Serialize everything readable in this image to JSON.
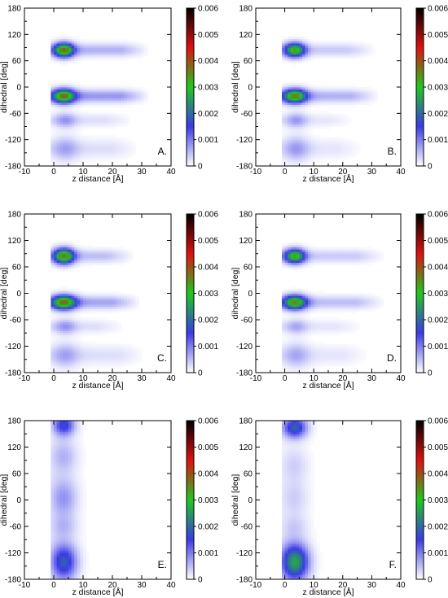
{
  "colorbar": {
    "min": 0,
    "max": 0.006,
    "ticks": [
      "0.006",
      "0.005",
      "0.004",
      "0.003",
      "0.002",
      "0.001",
      "0"
    ],
    "colors": [
      "#ffffff",
      "#3a3ae6",
      "#1fc81f",
      "#e01010",
      "#000000"
    ]
  },
  "chart_data": [
    {
      "type": "heatmap",
      "panel": "A.",
      "xlabel": "z distance [Å]",
      "ylabel": "dihedral [deg]",
      "xlim": [
        -10,
        40
      ],
      "ylim": [
        -180,
        180
      ],
      "xticks": [
        "-10",
        "0",
        "10",
        "20",
        "30",
        "40"
      ],
      "yticks": [
        "180",
        "120",
        "60",
        "0",
        "-60",
        "-120",
        "-180"
      ],
      "zlim": [
        0,
        0.006
      ],
      "blobs": [
        {
          "x": 3.5,
          "y": 85,
          "sx": 2.3,
          "sy": 11,
          "amp": 0.0033
        },
        {
          "x": 3.5,
          "y": -20,
          "sx": 2.6,
          "sy": 11,
          "amp": 0.0031
        },
        {
          "x": 4,
          "y": -75,
          "sx": 2.5,
          "sy": 12,
          "amp": 0.0006
        },
        {
          "x": 4,
          "y": -140,
          "sx": 3,
          "sy": 20,
          "amp": 0.0005
        }
      ],
      "streaks": [
        {
          "y": 85,
          "sy": 10,
          "x_end": 33,
          "amp": 0.0006
        },
        {
          "y": -20,
          "sy": 10,
          "x_end": 33,
          "amp": 0.0008
        },
        {
          "y": -75,
          "sy": 10,
          "x_end": 28,
          "amp": 0.00025
        },
        {
          "y": -140,
          "sy": 15,
          "x_end": 30,
          "amp": 0.00025
        }
      ]
    },
    {
      "type": "heatmap",
      "panel": "B.",
      "xlabel": "z distance [Å]",
      "ylabel": "dihedral [deg]",
      "xlim": [
        -10,
        40
      ],
      "ylim": [
        -180,
        180
      ],
      "xticks": [
        "-10",
        "0",
        "10",
        "20",
        "30",
        "40"
      ],
      "yticks": [
        "180",
        "120",
        "60",
        "0",
        "-60",
        "-120",
        "-180"
      ],
      "zlim": [
        0,
        0.006
      ],
      "blobs": [
        {
          "x": 3.5,
          "y": 85,
          "sx": 2.4,
          "sy": 11,
          "amp": 0.003
        },
        {
          "x": 3.5,
          "y": -20,
          "sx": 2.8,
          "sy": 11,
          "amp": 0.0031
        },
        {
          "x": 4,
          "y": -75,
          "sx": 2.5,
          "sy": 12,
          "amp": 0.0006
        },
        {
          "x": 4,
          "y": -140,
          "sx": 3,
          "sy": 20,
          "amp": 0.0006
        }
      ],
      "streaks": [
        {
          "y": 85,
          "sy": 10,
          "x_end": 32,
          "amp": 0.0004
        },
        {
          "y": -20,
          "sy": 10,
          "x_end": 33,
          "amp": 0.0006
        },
        {
          "y": -75,
          "sy": 10,
          "x_end": 25,
          "amp": 0.0002
        },
        {
          "y": -140,
          "sy": 15,
          "x_end": 28,
          "amp": 0.0002
        }
      ]
    },
    {
      "type": "heatmap",
      "panel": "C.",
      "xlabel": "z distance [Å]",
      "ylabel": "dihedral [deg]",
      "xlim": [
        -10,
        40
      ],
      "ylim": [
        -180,
        180
      ],
      "xticks": [
        "-10",
        "0",
        "10",
        "20",
        "30",
        "40"
      ],
      "yticks": [
        "180",
        "120",
        "60",
        "0",
        "-60",
        "-120",
        "-180"
      ],
      "zlim": [
        0,
        0.006
      ],
      "blobs": [
        {
          "x": 3.5,
          "y": 85,
          "sx": 2.4,
          "sy": 12,
          "amp": 0.0032
        },
        {
          "x": 3.5,
          "y": -20,
          "sx": 2.8,
          "sy": 11,
          "amp": 0.0032
        },
        {
          "x": 4,
          "y": -75,
          "sx": 2.5,
          "sy": 12,
          "amp": 0.0006
        },
        {
          "x": 4,
          "y": -140,
          "sx": 3,
          "sy": 20,
          "amp": 0.0005
        }
      ],
      "streaks": [
        {
          "y": 85,
          "sy": 10,
          "x_end": 28,
          "amp": 0.0005
        },
        {
          "y": -20,
          "sy": 10,
          "x_end": 30,
          "amp": 0.0007
        },
        {
          "y": -75,
          "sy": 10,
          "x_end": 25,
          "amp": 0.00025
        },
        {
          "y": -140,
          "sy": 15,
          "x_end": 32,
          "amp": 0.00025
        }
      ]
    },
    {
      "type": "heatmap",
      "panel": "D.",
      "xlabel": "z distance [Å]",
      "ylabel": "dihedral [deg]",
      "xlim": [
        -10,
        40
      ],
      "ylim": [
        -180,
        180
      ],
      "xticks": [
        "-10",
        "0",
        "10",
        "20",
        "30",
        "40"
      ],
      "yticks": [
        "180",
        "120",
        "60",
        "0",
        "-60",
        "-120",
        "-180"
      ],
      "zlim": [
        0,
        0.006
      ],
      "blobs": [
        {
          "x": 3.5,
          "y": 85,
          "sx": 2.4,
          "sy": 11,
          "amp": 0.003
        },
        {
          "x": 3.5,
          "y": -20,
          "sx": 2.8,
          "sy": 11,
          "amp": 0.0031
        },
        {
          "x": 4,
          "y": -75,
          "sx": 2.5,
          "sy": 12,
          "amp": 0.0005
        },
        {
          "x": 4,
          "y": -140,
          "sx": 3,
          "sy": 20,
          "amp": 0.0005
        }
      ],
      "streaks": [
        {
          "y": 85,
          "sy": 10,
          "x_end": 35,
          "amp": 0.0004
        },
        {
          "y": -20,
          "sy": 10,
          "x_end": 35,
          "amp": 0.0005
        },
        {
          "y": -75,
          "sy": 10,
          "x_end": 28,
          "amp": 0.0002
        },
        {
          "y": -140,
          "sy": 15,
          "x_end": 30,
          "amp": 0.0002
        }
      ]
    },
    {
      "type": "heatmap",
      "panel": "E.",
      "xlabel": "z distance [Å]",
      "ylabel": "dihedral [deg]",
      "xlim": [
        -10,
        40
      ],
      "ylim": [
        -180,
        180
      ],
      "xticks": [
        "-10",
        "0",
        "10",
        "20",
        "30",
        "40"
      ],
      "yticks": [
        "180",
        "120",
        "60",
        "0",
        "-60",
        "-120",
        "-180"
      ],
      "zlim": [
        0,
        0.006
      ],
      "blobs": [
        {
          "x": 3.5,
          "y": 170,
          "sx": 2.5,
          "sy": 16,
          "amp": 0.0016
        },
        {
          "x": 3.5,
          "y": 100,
          "sx": 3,
          "sy": 25,
          "amp": 0.0005
        },
        {
          "x": 3.5,
          "y": 5,
          "sx": 3,
          "sy": 30,
          "amp": 0.0007
        },
        {
          "x": 3.5,
          "y": -60,
          "sx": 3,
          "sy": 18,
          "amp": 0.0004
        },
        {
          "x": 3.5,
          "y": -140,
          "sx": 3,
          "sy": 28,
          "amp": 0.0018
        }
      ],
      "streaks": [
        {
          "y": 0,
          "sy": 150,
          "x_end": 12,
          "amp": 0.00015
        }
      ]
    },
    {
      "type": "heatmap",
      "panel": "F.",
      "xlabel": "z distance [Å]",
      "ylabel": "dihedral [deg]",
      "xlim": [
        -10,
        40
      ],
      "ylim": [
        -180,
        180
      ],
      "xticks": [
        "-10",
        "0",
        "10",
        "20",
        "30",
        "40"
      ],
      "yticks": [
        "180",
        "120",
        "60",
        "0",
        "-60",
        "-120",
        "-180"
      ],
      "zlim": [
        0,
        0.006
      ],
      "blobs": [
        {
          "x": 3.5,
          "y": 165,
          "sx": 2.8,
          "sy": 16,
          "amp": 0.0019
        },
        {
          "x": 3.5,
          "y": 80,
          "sx": 3,
          "sy": 25,
          "amp": 0.0003
        },
        {
          "x": 3.5,
          "y": 5,
          "sx": 3,
          "sy": 28,
          "amp": 0.0003
        },
        {
          "x": 3.5,
          "y": -60,
          "sx": 3,
          "sy": 18,
          "amp": 0.0003
        },
        {
          "x": 3.5,
          "y": -140,
          "sx": 3.2,
          "sy": 28,
          "amp": 0.0026
        }
      ],
      "streaks": [
        {
          "y": 0,
          "sy": 150,
          "x_end": 12,
          "amp": 0.0001
        }
      ]
    }
  ]
}
